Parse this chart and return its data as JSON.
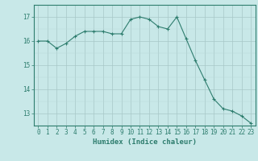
{
  "x": [
    0,
    1,
    2,
    3,
    4,
    5,
    6,
    7,
    8,
    9,
    10,
    11,
    12,
    13,
    14,
    15,
    16,
    17,
    18,
    19,
    20,
    21,
    22,
    23
  ],
  "y": [
    16.0,
    16.0,
    15.7,
    15.9,
    16.2,
    16.4,
    16.4,
    16.4,
    16.3,
    16.3,
    16.9,
    17.0,
    16.9,
    16.6,
    16.5,
    17.0,
    16.1,
    15.2,
    14.4,
    13.6,
    13.2,
    13.1,
    12.9,
    12.6
  ],
  "line_color": "#2e7d6e",
  "marker": "+",
  "marker_size": 3,
  "bg_color": "#c8e8e8",
  "grid_color_major": "#a8c8c8",
  "grid_color_minor": "#b8d8d8",
  "xlabel": "Humidex (Indice chaleur)",
  "ylim": [
    12.5,
    17.5
  ],
  "xlim": [
    -0.5,
    23.5
  ],
  "yticks": [
    13,
    14,
    15,
    16,
    17
  ],
  "xticks": [
    0,
    1,
    2,
    3,
    4,
    5,
    6,
    7,
    8,
    9,
    10,
    11,
    12,
    13,
    14,
    15,
    16,
    17,
    18,
    19,
    20,
    21,
    22,
    23
  ],
  "tick_color": "#2e7d6e",
  "label_color": "#2e7d6e",
  "tick_fontsize": 5.5,
  "xlabel_fontsize": 6.5
}
